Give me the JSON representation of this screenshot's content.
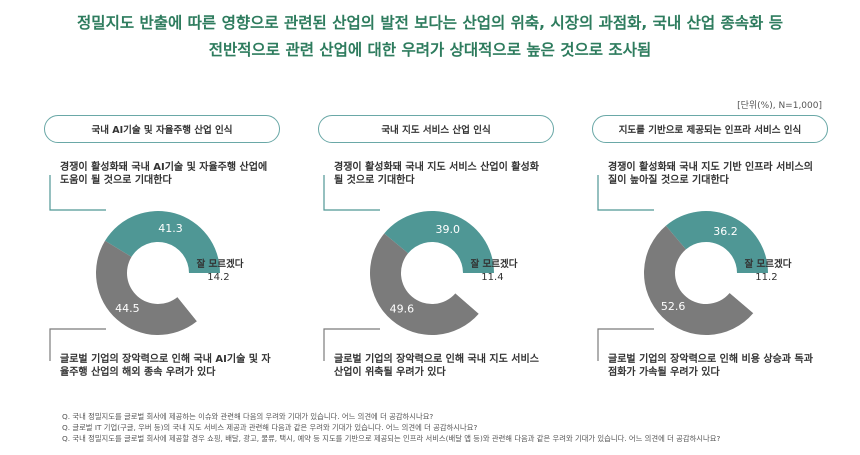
{
  "headline": {
    "line1": "정밀지도 반출에 따른 영향으로 관련된 산업의 발전 보다는 산업의 위축, 시장의 과점화, 국내 산업 종속화 등",
    "line2": "전반적으로 관련 산업에 대한 우려가 상대적으로 높은 것으로 조사됨"
  },
  "unit_note": "[단위(%), N=1,000]",
  "colors": {
    "positive": "#4f9795",
    "negative": "#7b7b7b",
    "accent_line": "#4f9795",
    "title_border": "#6aa8a7"
  },
  "chart_data": [
    {
      "type": "pie",
      "donut": true,
      "title": "국내 AI기술 및 자율주행 산업 인식",
      "categories": [
        "경쟁이 활성화돼 국내 AI기술 및 자율주행 산업에 도움이 될 것으로 기대한다",
        "잘 모르겠다",
        "글로벌 기업의 장악력으로 인해 국내 AI기술 및 자율주행 산업의 해외 종속 우려가 있다"
      ],
      "values": [
        41.3,
        14.2,
        44.5
      ],
      "labels": [
        "41.3",
        "14.2",
        "44.5"
      ],
      "unknown_label": "잘 모르겠다",
      "top_desc": "경쟁이 활성화돼 국내 AI기술 및 자율주행 산업에 도움이 될 것으로 기대한다",
      "bottom_desc": "글로벌 기업의 장악력으로 인해 국내 AI기술 및 자율주행 산업의 해외 종속 우려가 있다"
    },
    {
      "type": "pie",
      "donut": true,
      "title": "국내 지도 서비스 산업 인식",
      "categories": [
        "경쟁이 활성화돼 국내 지도 서비스 산업이 활성화될 것으로 기대한다",
        "잘 모르겠다",
        "글로벌 기업의 장악력으로 인해 국내 지도 서비스 산업이 위축될 우려가 있다"
      ],
      "values": [
        39.0,
        11.4,
        49.6
      ],
      "labels": [
        "39.0",
        "11.4",
        "49.6"
      ],
      "unknown_label": "잘 모르겠다",
      "top_desc": "경쟁이 활성화돼 국내 지도 서비스 산업이 활성화될 것으로 기대한다",
      "bottom_desc": "글로벌 기업의 장악력으로 인해 국내 지도 서비스 산업이 위축될 우려가 있다"
    },
    {
      "type": "pie",
      "donut": true,
      "title": "지도를 기반으로 제공되는 인프라 서비스 인식",
      "categories": [
        "경쟁이 활성화돼 국내 지도 기반 인프라 서비스의 질이 높아질 것으로 기대한다",
        "잘 모르겠다",
        "글로벌 기업의 장악력으로 인해 비용 상승과 독과점화가 가속될 우려가 있다"
      ],
      "values": [
        36.2,
        11.2,
        52.6
      ],
      "labels": [
        "36.2",
        "11.2",
        "52.6"
      ],
      "unknown_label": "잘 모르겠다",
      "top_desc": "경쟁이 활성화돼 국내 지도 기반 인프라 서비스의 질이 높아질 것으로 기대한다",
      "bottom_desc": "글로벌 기업의 장악력으로 인해 비용 상승과 독과점화가 가속될 우려가 있다"
    }
  ],
  "notes": [
    "Q. 국내 정밀지도를 글로벌 회사에 제공하는 이슈와 관련해 다음의 우려와 기대가 있습니다. 어느 의견에 더 공감하시나요?",
    "Q. 글로벌 IT 기업(구글, 우버 등)의 국내 지도 서비스 제공과 관련해 다음과 같은 우려와 기대가 있습니다. 어느 의견에 더 공감하시나요?",
    "Q. 국내 정밀지도를 글로벌 회사에 제공할 경우 쇼핑, 배달, 광고, 물류, 택시, 예약 등 지도를 기반으로 제공되는 인프라 서비스(배달 앱 등)와 관련해 다음과 같은 우려와 기대가 있습니다. 어느 의견에 더 공감하시나요?"
  ]
}
